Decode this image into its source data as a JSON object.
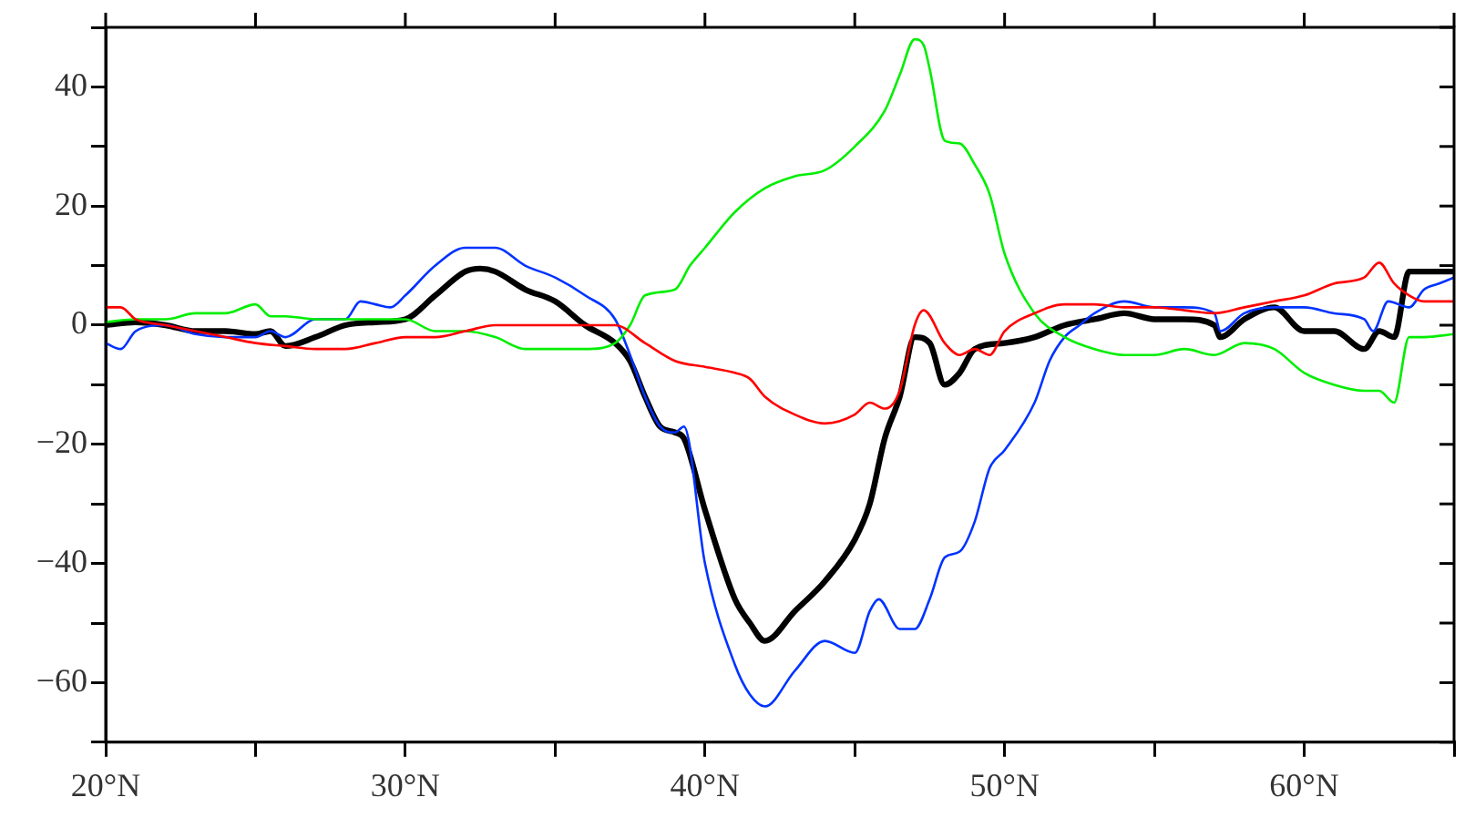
{
  "chart_data": {
    "type": "line",
    "xlim": [
      20,
      65
    ],
    "ylim": [
      -70,
      50
    ],
    "xticks": [
      {
        "value": 20,
        "label": "20°N"
      },
      {
        "value": 25,
        "label": null
      },
      {
        "value": 30,
        "label": "30°N"
      },
      {
        "value": 35,
        "label": null
      },
      {
        "value": 40,
        "label": "40°N"
      },
      {
        "value": 45,
        "label": null
      },
      {
        "value": 50,
        "label": "50°N"
      },
      {
        "value": 55,
        "label": null
      },
      {
        "value": 60,
        "label": "60°N"
      },
      {
        "value": 65,
        "label": null
      }
    ],
    "yticks": [
      {
        "value": -70,
        "label": null
      },
      -60,
      {
        "value": -50,
        "label": null
      },
      -40,
      {
        "value": -30,
        "label": null
      },
      -20,
      {
        "value": -10,
        "label": null
      },
      0,
      {
        "value": 10,
        "label": null
      },
      20,
      {
        "value": 30,
        "label": null
      },
      40,
      {
        "value": 50,
        "label": null
      }
    ],
    "grid": false,
    "legend": false,
    "marker": "none",
    "line_style": "solid",
    "series": [
      {
        "color": "#ff0000",
        "x": [
          20,
          20.5,
          21,
          22,
          23,
          24,
          25,
          26,
          27,
          28,
          29,
          30,
          31,
          32,
          33,
          34,
          35,
          36,
          37,
          38,
          39,
          40,
          41,
          41.5,
          42,
          43,
          44,
          45,
          45.5,
          46,
          46.5,
          47,
          47.3,
          48,
          48.5,
          49,
          49.5,
          50,
          51,
          52,
          53,
          54,
          55,
          56,
          57,
          58,
          59,
          60,
          61,
          62,
          62.5,
          63,
          63.5,
          64,
          65
        ],
        "values": [
          3,
          3,
          1,
          0,
          -1,
          -2,
          -3,
          -3.5,
          -4,
          -4,
          -3,
          -2,
          -2,
          -1,
          0,
          0,
          0,
          0,
          0,
          -3,
          -6,
          -7,
          -8,
          -9,
          -12,
          -15,
          -16.5,
          -15,
          -13,
          -14,
          -11,
          0,
          2.5,
          -3,
          -5,
          -4,
          -5,
          -1,
          2,
          3.5,
          3.5,
          3,
          3,
          2.5,
          2,
          3,
          4,
          5,
          7,
          8,
          10.5,
          7,
          5,
          4,
          4
        ]
      },
      {
        "color": "#00ee00",
        "x": [
          20,
          21,
          22,
          23,
          24,
          25,
          25.5,
          26,
          27,
          28,
          29,
          30,
          31,
          32,
          33,
          34,
          35,
          36,
          37,
          37.5,
          38,
          39,
          39.5,
          40,
          41,
          42,
          43,
          44,
          45,
          46,
          46.5,
          47,
          47.3,
          47.5,
          48,
          48.5,
          49,
          49.5,
          50,
          51,
          52,
          53,
          54,
          55,
          56,
          57,
          58,
          59,
          60,
          61,
          62,
          62.5,
          63,
          63.5,
          64,
          65
        ],
        "values": [
          0.5,
          1,
          1,
          2,
          2,
          3.5,
          1.5,
          1.5,
          1,
          1,
          1,
          1,
          -1,
          -1,
          -2,
          -4,
          -4,
          -4,
          -3,
          0,
          5,
          6,
          10,
          13,
          19,
          23,
          25,
          26,
          30,
          36,
          42,
          48,
          47,
          43,
          31,
          30.5,
          27,
          22,
          12,
          2,
          -2,
          -4,
          -5,
          -5,
          -4,
          -5,
          -3,
          -4,
          -8,
          -10,
          -11,
          -11,
          -13,
          -2,
          -2,
          -1.5
        ]
      },
      {
        "color": "#0033ff",
        "x": [
          20,
          20.5,
          21,
          22,
          23,
          24,
          25,
          25.5,
          26,
          27,
          28,
          28.5,
          29,
          29.5,
          30,
          31,
          32,
          33,
          34,
          35,
          36,
          37,
          37.5,
          38,
          38.5,
          39,
          39.3,
          40,
          41,
          41.5,
          42,
          43,
          44,
          45,
          45.5,
          45.8,
          46.5,
          47,
          47.5,
          48,
          48.5,
          49,
          49.5,
          50,
          51,
          51.5,
          52,
          52.5,
          53,
          54,
          55,
          56,
          57,
          57.2,
          58,
          59,
          60,
          61,
          62,
          62.3,
          62.8,
          63.5,
          64,
          64.5,
          65
        ],
        "values": [
          -3,
          -4,
          -1,
          0,
          -1.5,
          -2,
          -2,
          -1,
          -2,
          1,
          1,
          4,
          3.5,
          3,
          5,
          10,
          13,
          13,
          10,
          8,
          5,
          1,
          -5,
          -12,
          -17,
          -18,
          -17,
          -40,
          -57,
          -62,
          -64,
          -58,
          -53,
          -55,
          -48,
          -46,
          -51,
          -51,
          -46,
          -39,
          -38,
          -33,
          -24,
          -21,
          -13,
          -6,
          -2,
          0,
          2,
          4,
          3,
          3,
          2,
          -1,
          2,
          3,
          3,
          2,
          1,
          -1,
          4,
          3,
          6,
          7,
          8
        ]
      },
      {
        "color": "#000000",
        "x": [
          20,
          21,
          22,
          23,
          24,
          25,
          25.5,
          26,
          27,
          28,
          29,
          30,
          31,
          32,
          32.5,
          33,
          34,
          35,
          36,
          37,
          37.5,
          38,
          38.5,
          39,
          39.3,
          40,
          41,
          41.5,
          42,
          43,
          44,
          45,
          45.5,
          46,
          46.5,
          47,
          47.5,
          48,
          48.5,
          49,
          50,
          51,
          52,
          53,
          54,
          55,
          56,
          57,
          57.2,
          58,
          59,
          60,
          61,
          62,
          62.5,
          63,
          63.5,
          64,
          65
        ],
        "values": [
          0,
          0.5,
          0,
          -1,
          -1,
          -1.5,
          -1,
          -3.5,
          -2,
          0,
          0.5,
          1,
          5,
          9,
          9.5,
          9,
          6,
          4,
          0,
          -3,
          -6,
          -12,
          -17,
          -18,
          -19,
          -31,
          -46,
          -50,
          -53,
          -48,
          -43,
          -36,
          -30,
          -19,
          -12,
          -2,
          -3,
          -10,
          -8,
          -4,
          -3,
          -2,
          0,
          1,
          2,
          1,
          1,
          0,
          -2,
          1,
          3,
          -1,
          -1,
          -4,
          -1,
          -2,
          9,
          9,
          9
        ]
      }
    ]
  }
}
